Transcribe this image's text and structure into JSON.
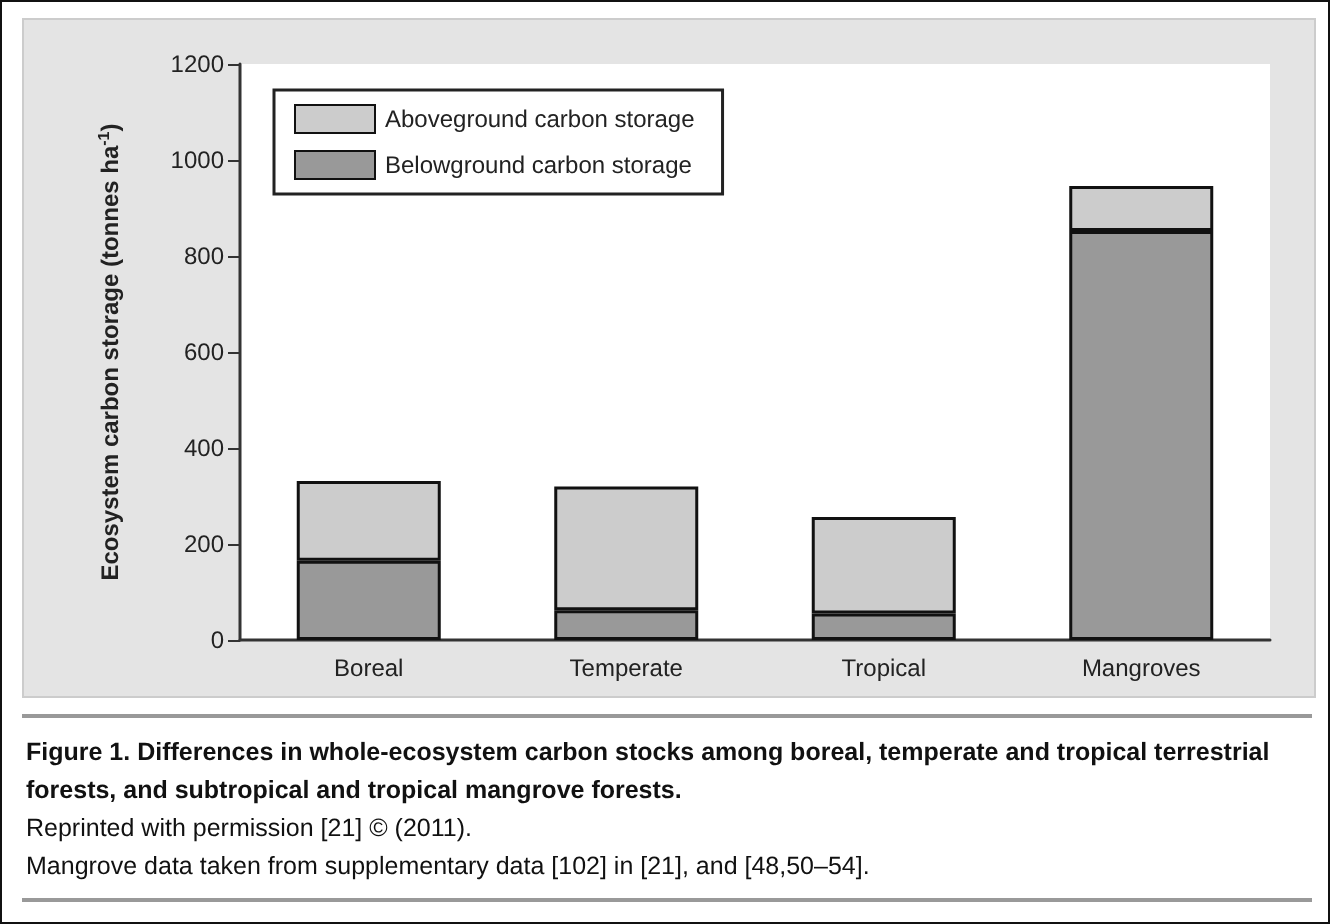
{
  "chart_data": {
    "type": "bar",
    "title": "Figure 1. Differences in whole-ecosystem carbon stocks among boreal, temperate and tropical terrestrial forests, and subtropical and tropical mangrove forests.",
    "ylabel": "Ecosystem carbon storage (tonnes ha$^{-1}$)",
    "annotations": [
      "Reprinted with permission [21] © (2011).",
      "Mangrove data taken from supplementary data [102] in [21], and [48,50–54]."
    ],
    "categories": [
      "Boreal",
      "Temperate",
      "Tropical",
      "Mangroves"
    ],
    "stacked": true,
    "series": [
      {
        "name": "Belowground carbon storage",
        "color": "#999999",
        "values": [
          165,
          62,
          55,
          852
        ]
      },
      {
        "name": "Aboveground carbon storage",
        "color": "#cccccc",
        "values": [
          166,
          258,
          201,
          94
        ]
      }
    ],
    "ylim": [
      0,
      1200
    ],
    "yticks": [
      0,
      200,
      400,
      600,
      800,
      1000,
      1200
    ],
    "grid": false,
    "legend": "top left"
  }
}
